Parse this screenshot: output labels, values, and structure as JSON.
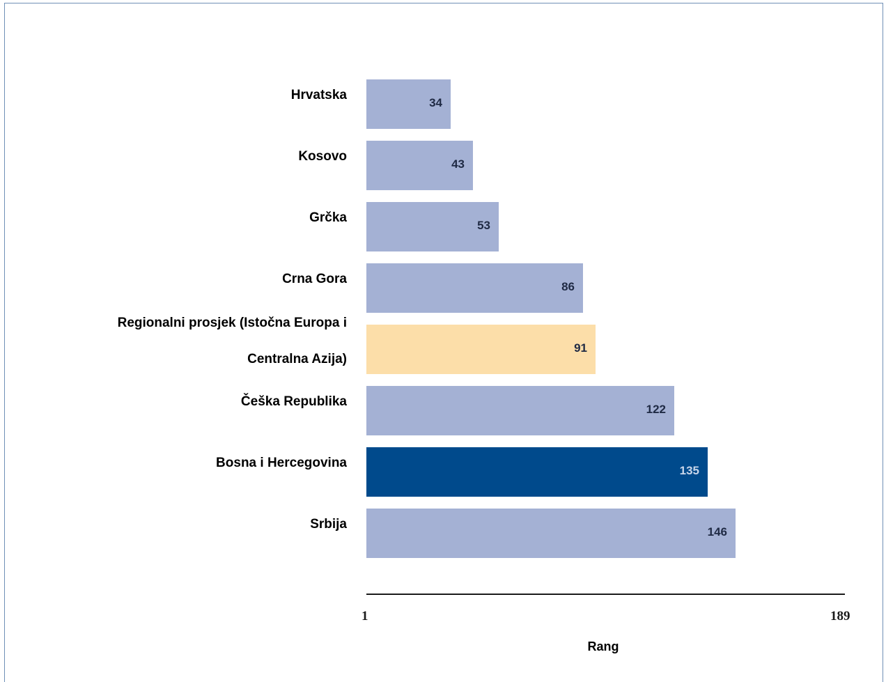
{
  "chart_data": {
    "type": "bar",
    "orientation": "horizontal",
    "categories": [
      "Hrvatska",
      "Kosovo",
      "Grčka",
      "Crna Gora",
      "Regionalni prosjek (Istočna Europa i Centralna Azija)",
      "Češka Republika",
      "Bosna i Hercegovina",
      "Srbija"
    ],
    "category_lines": [
      [
        "Hrvatska"
      ],
      [
        "Kosovo"
      ],
      [
        "Grčka"
      ],
      [
        "Crna Gora"
      ],
      [
        "Regionalni prosjek (Istočna Europa i",
        "Centralna Azija)"
      ],
      [
        "Češka Republika"
      ],
      [
        "Bosna i Hercegovina"
      ],
      [
        "Srbija"
      ]
    ],
    "values": [
      34,
      43,
      53,
      86,
      91,
      122,
      135,
      146
    ],
    "bar_colors": [
      "#a4b1d4",
      "#a4b1d4",
      "#a4b1d4",
      "#a4b1d4",
      "#fcdea9",
      "#a4b1d4",
      "#004a8c",
      "#a4b1d4"
    ],
    "value_label_colors": [
      "#1f2a44",
      "#1f2a44",
      "#1f2a44",
      "#1f2a44",
      "#1f2a44",
      "#1f2a44",
      "#c9d6ea",
      "#1f2a44"
    ],
    "xlim": [
      1,
      189
    ],
    "xticks": [
      "1",
      "189"
    ],
    "xlabel": "Rang",
    "grid": false,
    "legend": "none"
  }
}
